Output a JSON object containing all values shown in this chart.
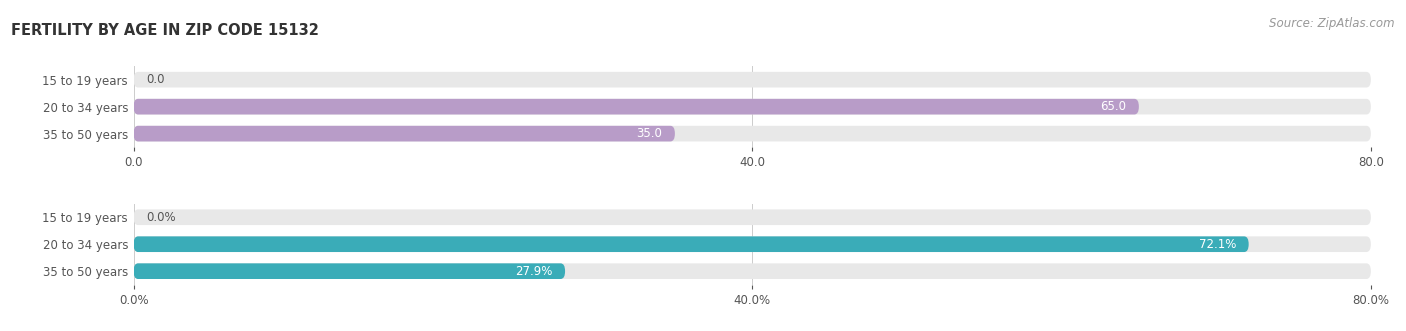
{
  "title": "FERTILITY BY AGE IN ZIP CODE 15132",
  "source": "Source: ZipAtlas.com",
  "top_chart": {
    "categories": [
      "15 to 19 years",
      "20 to 34 years",
      "35 to 50 years"
    ],
    "values": [
      0.0,
      65.0,
      35.0
    ],
    "bar_color": "#b89cc8",
    "bar_bg_color": "#e8e8e8",
    "xlim": [
      0,
      80
    ],
    "xticks": [
      0.0,
      40.0,
      80.0
    ],
    "xtick_labels": [
      "0.0",
      "40.0",
      "80.0"
    ],
    "value_labels": [
      "0.0",
      "65.0",
      "35.0"
    ]
  },
  "bottom_chart": {
    "categories": [
      "15 to 19 years",
      "20 to 34 years",
      "35 to 50 years"
    ],
    "values": [
      0.0,
      72.1,
      27.9
    ],
    "bar_color": "#3aacb8",
    "bar_bg_color": "#e8e8e8",
    "xlim": [
      0,
      80
    ],
    "xticks": [
      0.0,
      40.0,
      80.0
    ],
    "xtick_labels": [
      "0.0%",
      "40.0%",
      "80.0%"
    ],
    "value_labels": [
      "0.0%",
      "72.1%",
      "27.9%"
    ]
  },
  "bar_height": 0.58,
  "label_fontsize": 8.5,
  "value_fontsize": 8.5,
  "title_fontsize": 10.5,
  "source_fontsize": 8.5,
  "tick_fontsize": 8.5,
  "bg_color": "#ffffff",
  "label_color": "#555555",
  "title_color": "#333333",
  "source_color": "#999999",
  "value_color_inside": "#ffffff",
  "value_color_outside": "#555555",
  "grid_color": "#cccccc"
}
